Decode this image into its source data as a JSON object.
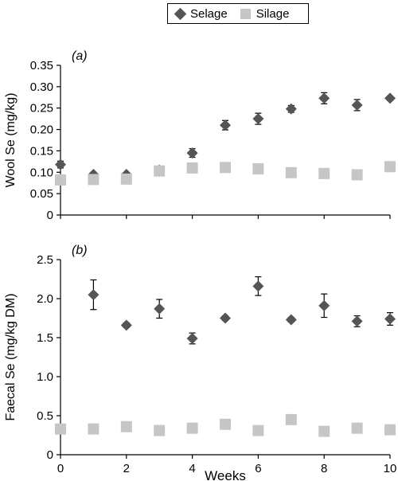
{
  "legend": {
    "series_a_label": "Selage",
    "series_b_label": "Silage"
  },
  "colors": {
    "selage": "#555555",
    "silage": "#c6c6c6",
    "axis": "#000000"
  },
  "chart_data": [
    {
      "type": "scatter",
      "panel_label": "(a)",
      "xlabel": "",
      "ylabel": "Wool Se (mg/kg)",
      "xlim": [
        0,
        10
      ],
      "ylim": [
        0,
        0.35
      ],
      "x_ticks": [
        "0",
        "2",
        "4",
        "6",
        "8",
        "10"
      ],
      "x_tick_labels_shown": false,
      "y_ticks": [
        "0",
        "0.05",
        "0.10",
        "0.15",
        "0.20",
        "0.25",
        "0.30",
        "0.35"
      ],
      "series": [
        {
          "name": "Selage",
          "marker": "diamond",
          "x": [
            0,
            1,
            2,
            3,
            4,
            5,
            6,
            7,
            8,
            9,
            10
          ],
          "y": [
            0.118,
            0.095,
            0.095,
            0.105,
            0.145,
            0.21,
            0.225,
            0.248,
            0.273,
            0.257,
            0.273
          ],
          "err": [
            0.008,
            0.004,
            0.004,
            0.004,
            0.01,
            0.011,
            0.013,
            0.008,
            0.013,
            0.013,
            0.005
          ]
        },
        {
          "name": "Silage",
          "marker": "square",
          "x": [
            0,
            1,
            2,
            3,
            4,
            5,
            6,
            7,
            8,
            9,
            10
          ],
          "y": [
            0.082,
            0.083,
            0.084,
            0.103,
            0.11,
            0.111,
            0.108,
            0.099,
            0.097,
            0.094,
            0.113
          ],
          "err": [
            0,
            0,
            0,
            0,
            0,
            0,
            0,
            0,
            0,
            0,
            0
          ]
        }
      ]
    },
    {
      "type": "scatter",
      "panel_label": "(b)",
      "xlabel": "Weeks",
      "ylabel": "Faecal Se (mg/kg DM)",
      "xlim": [
        0,
        10
      ],
      "ylim": [
        0,
        2.5
      ],
      "x_ticks": [
        "0",
        "2",
        "4",
        "6",
        "8",
        "10"
      ],
      "x_tick_labels_shown": true,
      "y_ticks": [
        "0",
        "0.5",
        "1.0",
        "1.5",
        "2.0",
        "2.5"
      ],
      "series": [
        {
          "name": "Selage",
          "marker": "diamond",
          "x": [
            1,
            2,
            3,
            4,
            5,
            6,
            7,
            8,
            9,
            10
          ],
          "y": [
            2.05,
            1.66,
            1.87,
            1.49,
            1.75,
            2.16,
            1.73,
            1.91,
            1.71,
            1.74
          ],
          "err": [
            0.19,
            0.03,
            0.12,
            0.07,
            0.03,
            0.12,
            0.03,
            0.15,
            0.07,
            0.08
          ]
        },
        {
          "name": "Silage",
          "marker": "square",
          "x": [
            0,
            1,
            2,
            3,
            4,
            5,
            6,
            7,
            8,
            9,
            10
          ],
          "y": [
            0.33,
            0.33,
            0.36,
            0.31,
            0.34,
            0.39,
            0.31,
            0.45,
            0.3,
            0.34,
            0.32
          ],
          "err": [
            0.05,
            0,
            0,
            0,
            0,
            0,
            0,
            0,
            0,
            0,
            0
          ]
        }
      ]
    }
  ]
}
